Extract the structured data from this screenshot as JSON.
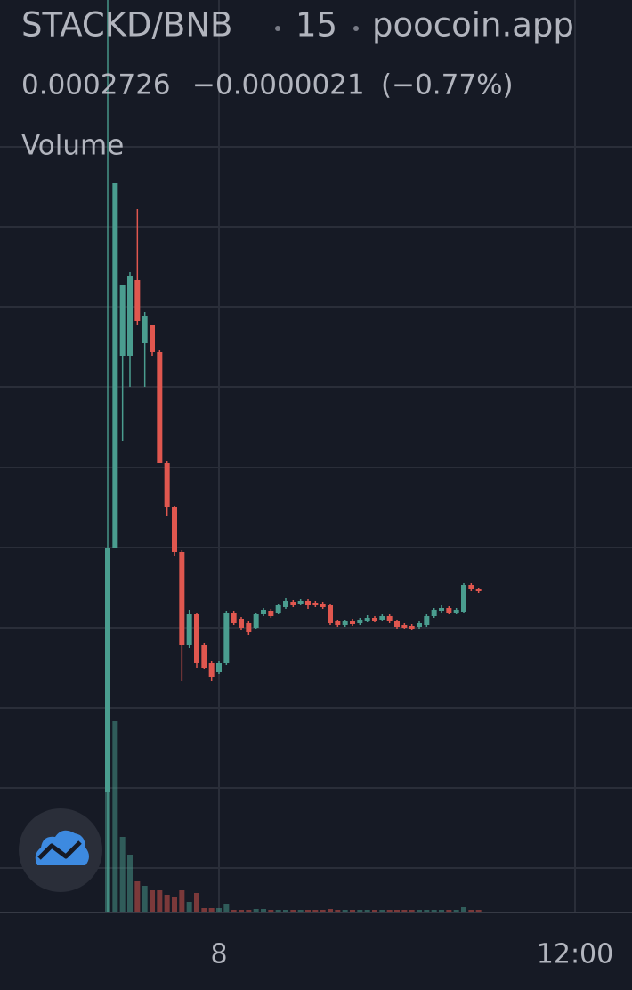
{
  "chart_data": {
    "type": "candlestick",
    "title": "STACKD/BNB",
    "interval": "15",
    "source": "poocoin.app",
    "header": {
      "values": [
        0.0002726,
        -2.1e-06,
        -0.77
      ],
      "value_labels": [
        "0.0002726",
        "−0.0000021",
        "(−0.77%)"
      ]
    },
    "volume_label": "Volume",
    "up_color": "#4a9d8f",
    "down_color": "#e0574f",
    "grid": true,
    "xlim": [
      -7.38,
      13.92
    ],
    "xticks": [
      {
        "value": 0,
        "label": "8"
      },
      {
        "value": 12,
        "label": "12:00"
      }
    ],
    "ylim": [
      9.21e-05,
      0.0006046
    ],
    "y_grid": [
      0.0005221,
      0.0004771,
      0.0004321,
      0.0003871,
      0.0003421,
      0.0002971,
      0.0002521,
      0.0002071,
      0.0001621,
      0.0001171
    ],
    "crosshair_x": -3.75,
    "x": [
      -3.75,
      -3.5,
      -3.25,
      -3,
      -2.75,
      -2.5,
      -2.25,
      -2,
      -1.75,
      -1.5,
      -1.25,
      -1,
      -0.75,
      -0.5,
      -0.25,
      0,
      0.25,
      0.5,
      0.75,
      1,
      1.25,
      1.5,
      1.75,
      2,
      2.25,
      2.5,
      2.75,
      3,
      3.25,
      3.5,
      3.75,
      4,
      4.25,
      4.5,
      4.75,
      5,
      5.25,
      5.5,
      5.75,
      6,
      6.25,
      6.5,
      6.75,
      7,
      7.25,
      7.5,
      7.75,
      8,
      8.25,
      8.5,
      8.75
    ],
    "open": [
      0.0001596,
      0.0002971,
      0.0004046,
      0.0004046,
      0.0004471,
      0.0004121,
      0.0004221,
      0.0004071,
      0.0003446,
      0.0003196,
      0.0002946,
      0.0002421,
      0.0002596,
      0.0002421,
      0.0002321,
      0.0002271,
      0.0002321,
      0.0002606,
      0.0002571,
      0.0002546,
      0.0002521,
      0.0002596,
      0.0002616,
      0.0002606,
      0.0002636,
      0.0002666,
      0.0002656,
      0.0002671,
      0.0002661,
      0.0002656,
      0.0002646,
      0.0002556,
      0.0002536,
      0.0002561,
      0.0002546,
      0.0002561,
      0.0002576,
      0.0002566,
      0.0002586,
      0.0002556,
      0.0002536,
      0.0002531,
      0.0002526,
      0.0002536,
      0.0002586,
      0.0002616,
      0.0002631,
      0.0002606,
      0.0002611,
      0.0002761,
      0.0002736
    ],
    "high": [
      0.0002971,
      0.0005021,
      0.0004446,
      0.0004521,
      0.0004871,
      0.0004296,
      0.0004221,
      0.0004081,
      0.0003456,
      0.0003206,
      0.0002956,
      0.0002621,
      0.0002606,
      0.0002436,
      0.0002336,
      0.0002331,
      0.0002616,
      0.0002616,
      0.0002581,
      0.0002556,
      0.0002606,
      0.0002631,
      0.0002626,
      0.0002656,
      0.0002686,
      0.0002676,
      0.0002681,
      0.0002681,
      0.0002671,
      0.0002666,
      0.0002656,
      0.0002566,
      0.0002566,
      0.0002571,
      0.0002576,
      0.0002591,
      0.0002586,
      0.0002596,
      0.0002596,
      0.0002566,
      0.0002546,
      0.0002541,
      0.0002556,
      0.0002596,
      0.0002631,
      0.0002646,
      0.0002641,
      0.0002631,
      0.0002771,
      0.0002771,
      0.0002746
    ],
    "low": [
      0.0001596,
      0.0002971,
      0.0003571,
      0.0003871,
      0.0004221,
      0.0003871,
      0.0004046,
      0.0003446,
      0.0003146,
      0.0002921,
      0.0002221,
      0.0002406,
      0.0002296,
      0.0002286,
      0.0002221,
      0.0002261,
      0.0002311,
      0.0002536,
      0.0002506,
      0.0002481,
      0.0002511,
      0.0002586,
      0.0002576,
      0.0002596,
      0.0002626,
      0.0002636,
      0.0002646,
      0.0002626,
      0.0002636,
      0.0002626,
      0.0002536,
      0.0002526,
      0.0002526,
      0.0002531,
      0.0002536,
      0.0002551,
      0.0002551,
      0.0002556,
      0.0002546,
      0.0002516,
      0.0002511,
      0.0002506,
      0.0002516,
      0.0002526,
      0.0002576,
      0.0002606,
      0.0002596,
      0.0002596,
      0.0002601,
      0.0002726,
      0.0002716
    ],
    "close": [
      0.0002971,
      0.0005021,
      0.0004446,
      0.0004496,
      0.0004246,
      0.0004271,
      0.0004071,
      0.0003446,
      0.0003196,
      0.0002946,
      0.0002421,
      0.0002596,
      0.0002321,
      0.0002296,
      0.0002246,
      0.0002321,
      0.0002606,
      0.0002546,
      0.0002521,
      0.0002496,
      0.0002596,
      0.0002621,
      0.0002586,
      0.0002646,
      0.0002671,
      0.0002646,
      0.0002671,
      0.0002646,
      0.0002646,
      0.0002636,
      0.0002546,
      0.0002536,
      0.0002556,
      0.0002541,
      0.0002566,
      0.0002576,
      0.0002561,
      0.0002586,
      0.0002556,
      0.0002526,
      0.0002521,
      0.0002516,
      0.0002546,
      0.0002586,
      0.0002621,
      0.0002631,
      0.0002606,
      0.0002621,
      0.0002761,
      0.0002736,
      0.0002726
    ],
    "vlim": [
      0,
      250
    ],
    "volume": [
      215,
      215,
      85,
      65,
      35,
      30,
      25,
      25,
      20,
      18,
      25,
      12,
      22,
      5,
      5,
      5,
      10,
      3,
      3,
      3,
      4,
      4,
      3,
      3,
      3,
      3,
      3,
      3,
      3,
      3,
      4,
      3,
      3,
      3,
      3,
      3,
      3,
      3,
      3,
      3,
      3,
      3,
      3,
      3,
      3,
      3,
      3,
      3,
      6,
      3,
      3
    ]
  }
}
